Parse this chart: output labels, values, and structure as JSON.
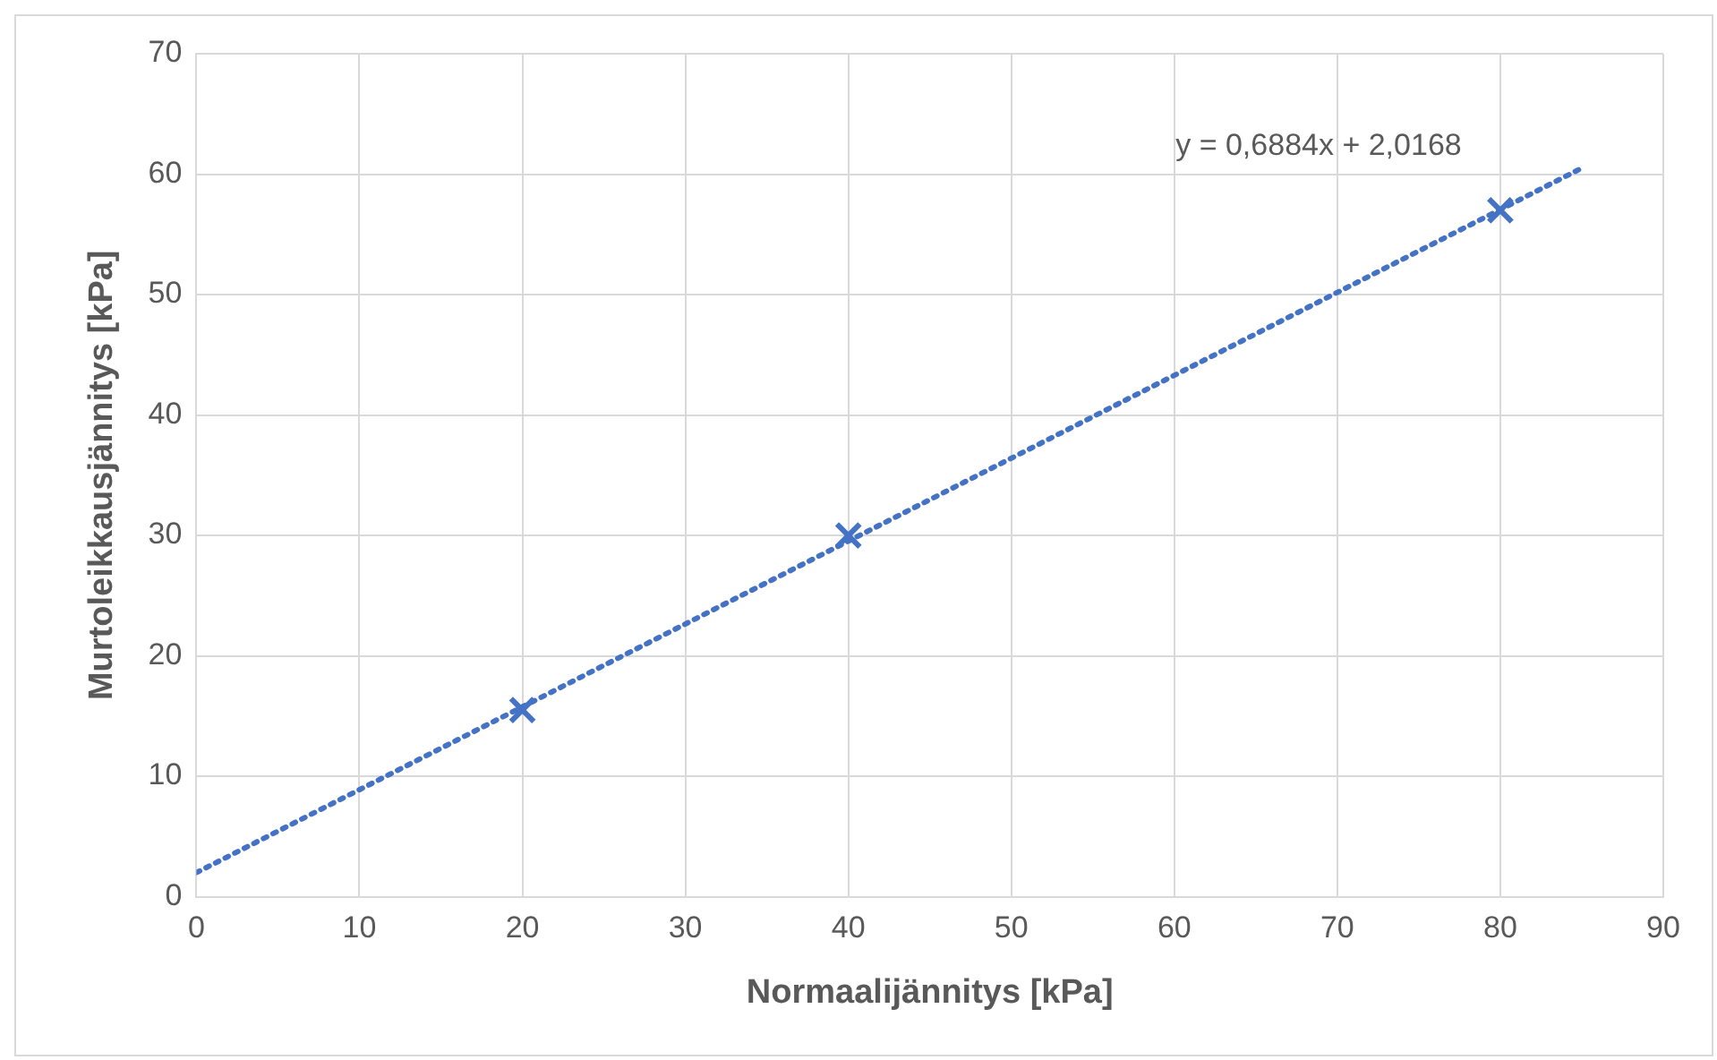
{
  "chart_data": {
    "type": "scatter",
    "xlabel": "Normaalijännitys [kPa]",
    "ylabel": "Murtoleikkausjännitys [kPa]",
    "x": [
      20,
      40,
      80
    ],
    "series": [
      {
        "color": "#4472c4",
        "values": [
          15.5,
          30,
          57
        ],
        "marker": "cross"
      },
      {
        "type": "line",
        "color": "#4472c4",
        "x": [
          0,
          85
        ],
        "values": [
          2.0,
          60.5
        ],
        "marker": "none",
        "line_style": "dotted"
      }
    ],
    "xlim": [
      0,
      90
    ],
    "xticks": [
      0,
      10,
      20,
      30,
      40,
      50,
      60,
      70,
      80,
      90
    ],
    "ylim": [
      0,
      70
    ],
    "yticks": [
      0,
      10,
      20,
      30,
      40,
      50,
      60,
      70
    ],
    "grid": true,
    "legend": false,
    "annotations": [
      "y = 0,6884x + 2,0168"
    ]
  }
}
